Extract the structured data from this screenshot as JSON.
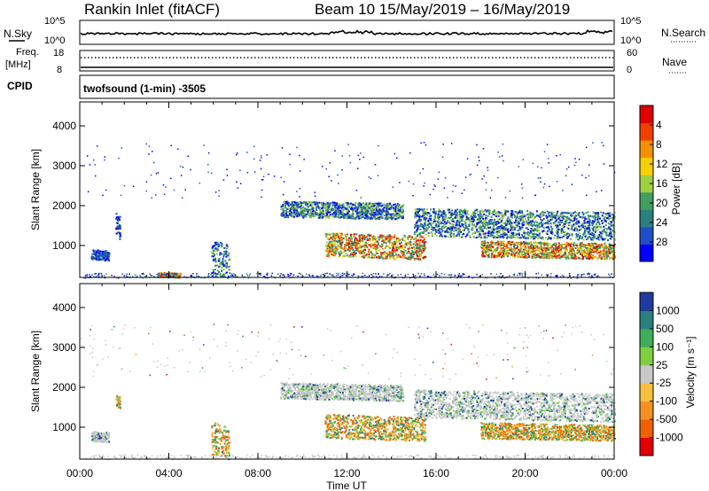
{
  "header": {
    "station": "Rankin Inlet (fitACF)",
    "beam_dates": "Beam 10 15/May/2019 – 16/May/2019",
    "mode": "twofsound (1-min) -3505"
  },
  "strip": {
    "nsky_label": "N.Sky",
    "nsky_ticks": [
      "10^5",
      "10^0"
    ],
    "nsearch_label": "N.Search",
    "freq_label": "Freq.",
    "freq_unit": "[MHz]",
    "freq_ticks": [
      "18",
      "8"
    ],
    "nave_label": "Nave",
    "nave_ticks": [
      "60",
      "0"
    ],
    "cpid_label": "CPID"
  },
  "chart_data": [
    {
      "type": "heatmap",
      "name": "power",
      "ylabel": "Slant Range [km]",
      "xlabel": "Time UT",
      "x_ticks": [
        "00:00",
        "04:00",
        "08:00",
        "12:00",
        "16:00",
        "20:00",
        "00:00"
      ],
      "xlim_hours": [
        0,
        24
      ],
      "y_ticks": [
        1000,
        2000,
        3000,
        4000
      ],
      "ylim": [
        200,
        4600
      ],
      "colorbar": {
        "label": "Power [dB]",
        "ticks": [
          "4",
          "8",
          "12",
          "16",
          "20",
          "24",
          "28"
        ],
        "range": [
          0,
          30
        ],
        "colors": [
          "#0000ff",
          "#1e4fc8",
          "#2a7f7f",
          "#3f9f5f",
          "#9fd040",
          "#f5d000",
          "#f59000",
          "#f04000",
          "#e00000"
        ]
      },
      "bands": [
        {
          "t": [
            0.5,
            1.3
          ],
          "r": [
            650,
            900
          ],
          "level": "low"
        },
        {
          "t": [
            1.6,
            1.8
          ],
          "r": [
            1200,
            1800
          ],
          "level": "low"
        },
        {
          "t": [
            3.5,
            4.5
          ],
          "r": [
            220,
            330
          ],
          "level": "high"
        },
        {
          "t": [
            5.9,
            6.7
          ],
          "r": [
            250,
            1100
          ],
          "level": "mid"
        },
        {
          "t": [
            9.0,
            14.5
          ],
          "r": [
            1700,
            2100
          ],
          "level": "mid"
        },
        {
          "t": [
            11.0,
            15.5
          ],
          "r": [
            700,
            1300
          ],
          "level": "high"
        },
        {
          "t": [
            15.0,
            24.0
          ],
          "r": [
            1200,
            1900
          ],
          "level": "mid"
        },
        {
          "t": [
            18.0,
            24.0
          ],
          "r": [
            700,
            1100
          ],
          "level": "high"
        }
      ]
    },
    {
      "type": "heatmap",
      "name": "velocity",
      "ylabel": "Slant Range [km]",
      "xlabel": "Time UT",
      "x_ticks": [
        "00:00",
        "04:00",
        "08:00",
        "12:00",
        "16:00",
        "20:00",
        "00:00"
      ],
      "xlim_hours": [
        0,
        24
      ],
      "y_ticks": [
        1000,
        2000,
        3000,
        4000
      ],
      "ylim": [
        200,
        4600
      ],
      "colorbar": {
        "label": "Velocity [m s⁻¹]",
        "ticks": [
          "1000",
          "500",
          "100",
          "25",
          "-25",
          "-100",
          "-500",
          "-1000"
        ],
        "colors": [
          "#1e3ca0",
          "#2a7f7f",
          "#3fae5a",
          "#7fd040",
          "#c8c8c8",
          "#f5c040",
          "#f59020",
          "#f06000",
          "#e00000"
        ]
      },
      "bands": [
        {
          "t": [
            0.5,
            1.3
          ],
          "r": [
            650,
            900
          ],
          "level": "gray"
        },
        {
          "t": [
            1.6,
            1.8
          ],
          "r": [
            1500,
            1800
          ],
          "level": "neg"
        },
        {
          "t": [
            5.9,
            6.7
          ],
          "r": [
            250,
            1100
          ],
          "level": "neg"
        },
        {
          "t": [
            9.0,
            14.5
          ],
          "r": [
            1700,
            2100
          ],
          "level": "gray"
        },
        {
          "t": [
            11.0,
            15.5
          ],
          "r": [
            700,
            1300
          ],
          "level": "neg"
        },
        {
          "t": [
            15.0,
            24.0
          ],
          "r": [
            1200,
            1900
          ],
          "level": "gray"
        },
        {
          "t": [
            18.0,
            24.0
          ],
          "r": [
            700,
            1100
          ],
          "level": "neg"
        }
      ]
    }
  ]
}
